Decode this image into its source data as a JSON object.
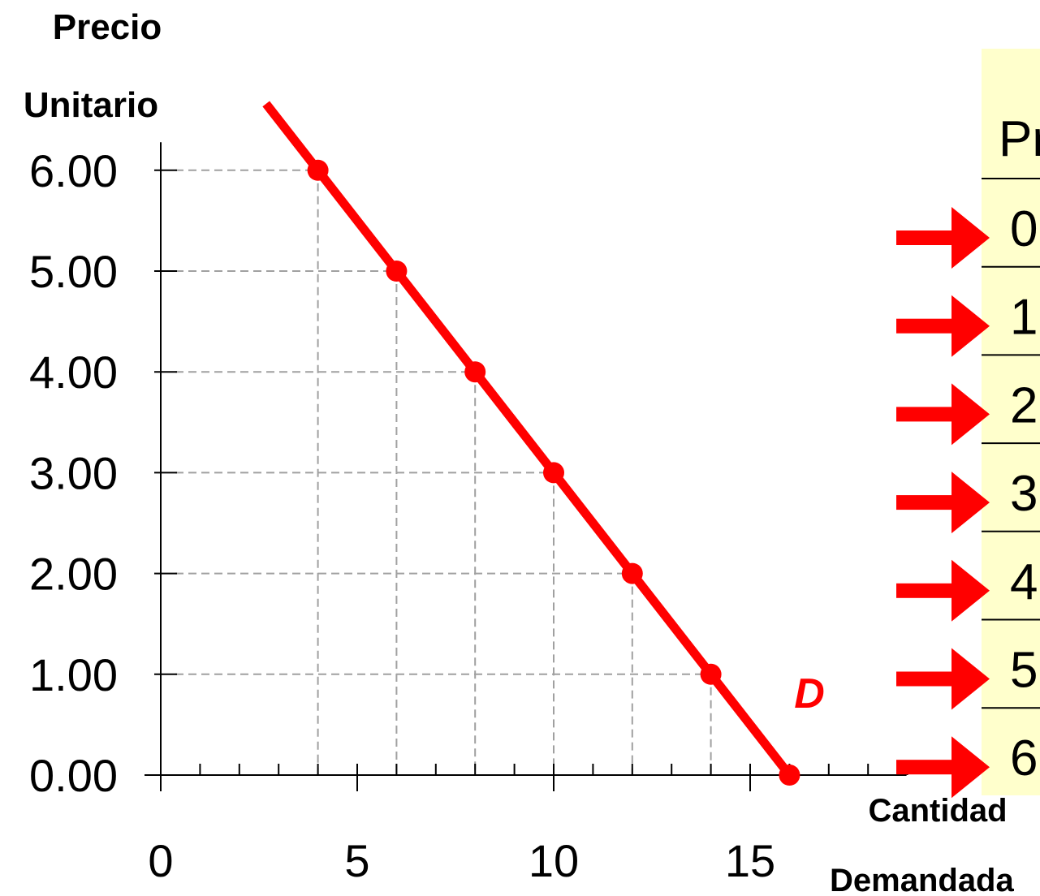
{
  "chart_data": {
    "type": "line",
    "ylabel_line1": "Precio",
    "ylabel_line2": "Unitario",
    "xlabel_line1": "Cantidad",
    "xlabel_line2": "Demandada",
    "series_label": "D",
    "x": [
      4,
      6,
      8,
      10,
      12,
      14,
      16
    ],
    "y": [
      6,
      5,
      4,
      3,
      2,
      1,
      0
    ],
    "xlim": [
      0,
      19
    ],
    "ylim": [
      0,
      6.6
    ],
    "xticks": [
      0,
      5,
      10,
      15
    ],
    "xtick_labels": [
      "0",
      "5",
      "10",
      "15"
    ],
    "yticks": [
      0,
      1,
      2,
      3,
      4,
      5,
      6
    ],
    "ytick_labels": [
      "0.00",
      "1.00",
      "2.00",
      "3.00",
      "4.00",
      "5.00",
      "6.00"
    ],
    "line_color": "#ff0000",
    "guide_color": "#a0a0a0",
    "grid": false,
    "table": {
      "header": "Pr",
      "cells": [
        "0",
        "1",
        "2",
        "3",
        "4",
        "5",
        "6"
      ],
      "background": "#ffffcc"
    }
  }
}
